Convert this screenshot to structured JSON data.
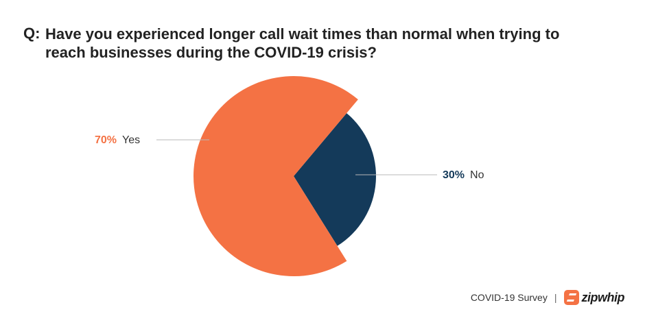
{
  "question": {
    "prefix": "Q:",
    "text": "Have you experienced longer call wait times than normal when trying to reach businesses during the COVID-19 crisis?"
  },
  "chart_data": {
    "type": "pie",
    "categories": [
      "Yes",
      "No"
    ],
    "values": [
      70,
      30
    ],
    "value_labels": [
      "70%",
      "30%"
    ],
    "colors": [
      "#f47244",
      "#143a5a"
    ],
    "legend": "none"
  },
  "footer": {
    "survey_label": "COVID-19 Survey",
    "separator": "|",
    "brand": "zipwhip",
    "brand_color": "#f47244",
    "logo_icon": "zipwhip-logo-icon"
  }
}
